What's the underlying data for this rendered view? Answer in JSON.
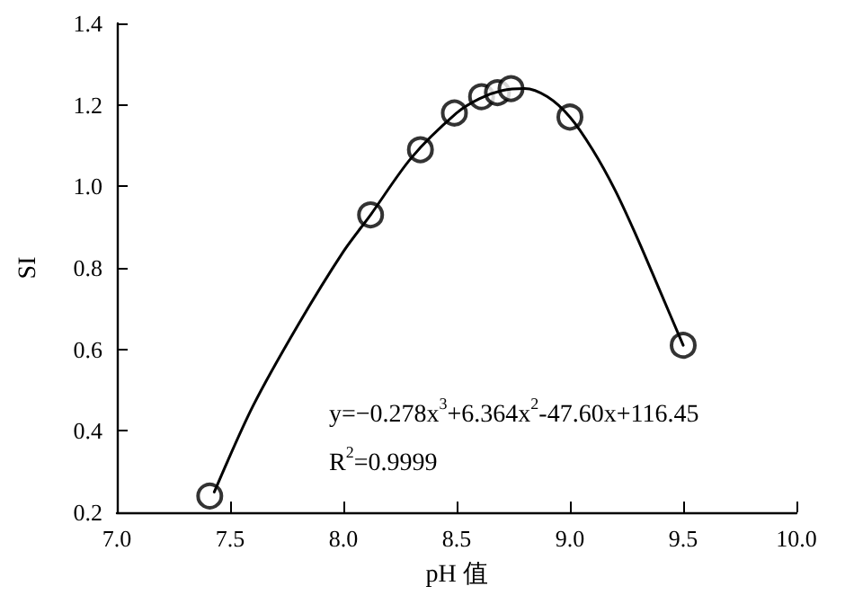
{
  "chart_data": {
    "type": "scatter",
    "xlabel": "pH 值",
    "ylabel": "SI",
    "xlim": [
      7.0,
      10.0
    ],
    "xticks": [
      {
        "value": 7,
        "label": "7.0"
      },
      7.5,
      {
        "value": 8,
        "label": "8.0"
      },
      8.5,
      {
        "value": 9,
        "label": "9.0"
      },
      9.5,
      {
        "value": 10,
        "label": "10.0"
      }
    ],
    "ylim": [
      0.2,
      1.4
    ],
    "yticks": [
      0.2,
      0.4,
      0.6,
      0.8,
      {
        "value": 1,
        "label": "1.0"
      },
      1.2,
      1.4
    ],
    "grid": false,
    "marker": "circle",
    "series": [
      {
        "color": "#000000",
        "x": [
          7.41,
          8.12,
          8.34,
          8.49,
          8.61,
          8.68,
          8.74,
          9.0,
          9.5
        ],
        "values": [
          0.24,
          0.93,
          1.09,
          1.18,
          1.22,
          1.23,
          1.24,
          1.17,
          0.61
        ]
      },
      {
        "type": "line",
        "color": "#000000",
        "line_style": "solid",
        "marker": "none",
        "x": [
          7.43,
          7.6,
          7.8,
          8.0,
          8.12,
          8.3,
          8.5,
          8.6,
          8.7,
          8.8,
          8.9,
          9.0,
          9.1,
          9.2,
          9.3,
          9.4,
          9.5
        ],
        "values": [
          0.25,
          0.46,
          0.66,
          0.84,
          0.93,
          1.07,
          1.18,
          1.215,
          1.235,
          1.24,
          1.22,
          1.17,
          1.09,
          0.99,
          0.87,
          0.74,
          0.61
        ]
      }
    ],
    "annotations": [
      "y=−0.278x$^{3}$+6.364x$^{2}$-47.60x+116.45",
      "R$^{2}$=0.9999"
    ]
  }
}
